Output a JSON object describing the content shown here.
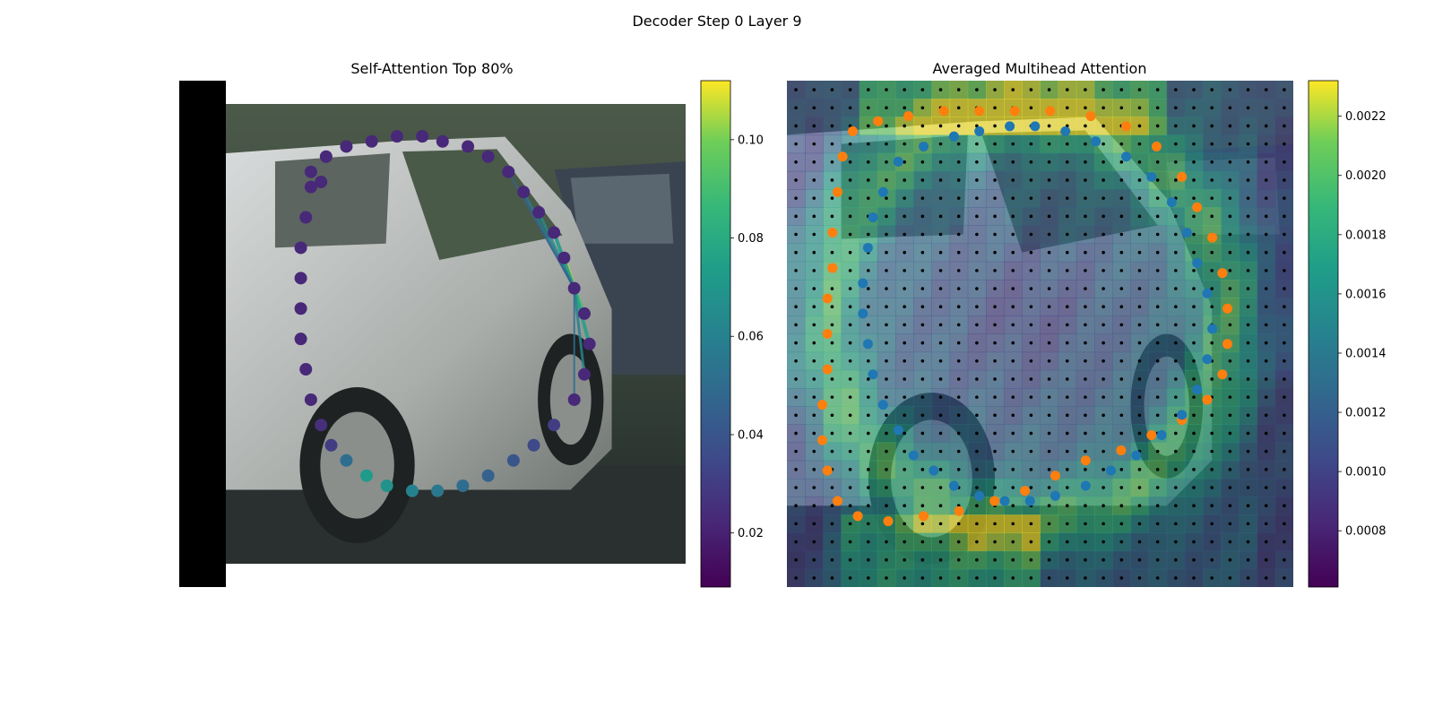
{
  "figure": {
    "suptitle": "Decoder Step 0 Layer 9"
  },
  "chart_data": [
    {
      "type": "scatter",
      "title": "Self-Attention Top 80%",
      "description_of_background": "photo of a silver car",
      "colormap": "viridis",
      "colorbar": {
        "ticks": [
          0.02,
          0.04,
          0.06,
          0.08,
          0.1
        ],
        "tick_labels": [
          "0.02",
          "0.04",
          "0.06",
          "0.08",
          "0.10"
        ],
        "range": [
          0.009,
          0.112
        ]
      },
      "query_point_index": 14,
      "points": [
        {
          "x": 0.26,
          "y": 0.18,
          "v": 0.022
        },
        {
          "x": 0.29,
          "y": 0.15,
          "v": 0.022
        },
        {
          "x": 0.33,
          "y": 0.13,
          "v": 0.022
        },
        {
          "x": 0.38,
          "y": 0.12,
          "v": 0.022
        },
        {
          "x": 0.43,
          "y": 0.11,
          "v": 0.022
        },
        {
          "x": 0.48,
          "y": 0.11,
          "v": 0.022
        },
        {
          "x": 0.52,
          "y": 0.12,
          "v": 0.022
        },
        {
          "x": 0.57,
          "y": 0.13,
          "v": 0.022
        },
        {
          "x": 0.61,
          "y": 0.15,
          "v": 0.022
        },
        {
          "x": 0.65,
          "y": 0.18,
          "v": 0.022
        },
        {
          "x": 0.68,
          "y": 0.22,
          "v": 0.022
        },
        {
          "x": 0.71,
          "y": 0.26,
          "v": 0.022
        },
        {
          "x": 0.74,
          "y": 0.3,
          "v": 0.022
        },
        {
          "x": 0.76,
          "y": 0.35,
          "v": 0.022
        },
        {
          "x": 0.78,
          "y": 0.41,
          "v": 0.022
        },
        {
          "x": 0.8,
          "y": 0.46,
          "v": 0.022
        },
        {
          "x": 0.81,
          "y": 0.52,
          "v": 0.022
        },
        {
          "x": 0.8,
          "y": 0.58,
          "v": 0.022
        },
        {
          "x": 0.78,
          "y": 0.63,
          "v": 0.022
        },
        {
          "x": 0.74,
          "y": 0.68,
          "v": 0.03
        },
        {
          "x": 0.7,
          "y": 0.72,
          "v": 0.035
        },
        {
          "x": 0.66,
          "y": 0.75,
          "v": 0.04
        },
        {
          "x": 0.61,
          "y": 0.78,
          "v": 0.045
        },
        {
          "x": 0.56,
          "y": 0.8,
          "v": 0.05
        },
        {
          "x": 0.51,
          "y": 0.81,
          "v": 0.055
        },
        {
          "x": 0.46,
          "y": 0.81,
          "v": 0.06
        },
        {
          "x": 0.41,
          "y": 0.8,
          "v": 0.068
        },
        {
          "x": 0.37,
          "y": 0.78,
          "v": 0.072
        },
        {
          "x": 0.33,
          "y": 0.75,
          "v": 0.05
        },
        {
          "x": 0.3,
          "y": 0.72,
          "v": 0.03
        },
        {
          "x": 0.28,
          "y": 0.68,
          "v": 0.025
        },
        {
          "x": 0.26,
          "y": 0.63,
          "v": 0.022
        },
        {
          "x": 0.25,
          "y": 0.57,
          "v": 0.022
        },
        {
          "x": 0.24,
          "y": 0.51,
          "v": 0.022
        },
        {
          "x": 0.24,
          "y": 0.45,
          "v": 0.022
        },
        {
          "x": 0.24,
          "y": 0.39,
          "v": 0.022
        },
        {
          "x": 0.24,
          "y": 0.33,
          "v": 0.022
        },
        {
          "x": 0.25,
          "y": 0.27,
          "v": 0.022
        },
        {
          "x": 0.26,
          "y": 0.21,
          "v": 0.022
        },
        {
          "x": 0.28,
          "y": 0.2,
          "v": 0.022
        }
      ],
      "attention_lines": [
        {
          "to": 13,
          "v": 0.105,
          "w": 5
        },
        {
          "to": 15,
          "v": 0.09,
          "w": 4
        },
        {
          "to": 16,
          "v": 0.075,
          "w": 4
        },
        {
          "to": 12,
          "v": 0.07,
          "w": 4
        },
        {
          "to": 11,
          "v": 0.065,
          "w": 3
        },
        {
          "to": 10,
          "v": 0.055,
          "w": 3
        },
        {
          "to": 17,
          "v": 0.06,
          "w": 3
        },
        {
          "to": 18,
          "v": 0.05,
          "w": 2
        },
        {
          "to": 9,
          "v": 0.045,
          "w": 2
        }
      ]
    },
    {
      "type": "heatmap",
      "title": "Averaged Multihead Attention",
      "description_of_background": "photo of a silver car overlaid with an attention heatmap",
      "colormap": "viridis",
      "colorbar": {
        "ticks": [
          0.0008,
          0.001,
          0.0012,
          0.0014,
          0.0016,
          0.0018,
          0.002,
          0.0022
        ],
        "tick_labels": [
          "0.0008",
          "0.0010",
          "0.0012",
          "0.0014",
          "0.0016",
          "0.0018",
          "0.0020",
          "0.0022"
        ],
        "range": [
          0.00061,
          0.00232
        ]
      },
      "grid": {
        "rows": 28,
        "cols": 28
      },
      "series": [
        {
          "color": "#ff7f0e",
          "points": [
            {
              "x": 0.13,
              "y": 0.1
            },
            {
              "x": 0.18,
              "y": 0.08
            },
            {
              "x": 0.24,
              "y": 0.07
            },
            {
              "x": 0.31,
              "y": 0.06
            },
            {
              "x": 0.38,
              "y": 0.06
            },
            {
              "x": 0.45,
              "y": 0.06
            },
            {
              "x": 0.52,
              "y": 0.06
            },
            {
              "x": 0.6,
              "y": 0.07
            },
            {
              "x": 0.67,
              "y": 0.09
            },
            {
              "x": 0.73,
              "y": 0.13
            },
            {
              "x": 0.78,
              "y": 0.19
            },
            {
              "x": 0.81,
              "y": 0.25
            },
            {
              "x": 0.84,
              "y": 0.31
            },
            {
              "x": 0.86,
              "y": 0.38
            },
            {
              "x": 0.87,
              "y": 0.45
            },
            {
              "x": 0.87,
              "y": 0.52
            },
            {
              "x": 0.86,
              "y": 0.58
            },
            {
              "x": 0.83,
              "y": 0.63
            },
            {
              "x": 0.78,
              "y": 0.67
            },
            {
              "x": 0.72,
              "y": 0.7
            },
            {
              "x": 0.66,
              "y": 0.73
            },
            {
              "x": 0.59,
              "y": 0.75
            },
            {
              "x": 0.53,
              "y": 0.78
            },
            {
              "x": 0.47,
              "y": 0.81
            },
            {
              "x": 0.41,
              "y": 0.83
            },
            {
              "x": 0.34,
              "y": 0.85
            },
            {
              "x": 0.27,
              "y": 0.86
            },
            {
              "x": 0.2,
              "y": 0.87
            },
            {
              "x": 0.14,
              "y": 0.86
            },
            {
              "x": 0.1,
              "y": 0.83
            },
            {
              "x": 0.08,
              "y": 0.77
            },
            {
              "x": 0.07,
              "y": 0.71
            },
            {
              "x": 0.07,
              "y": 0.64
            },
            {
              "x": 0.08,
              "y": 0.57
            },
            {
              "x": 0.08,
              "y": 0.5
            },
            {
              "x": 0.08,
              "y": 0.43
            },
            {
              "x": 0.09,
              "y": 0.37
            },
            {
              "x": 0.09,
              "y": 0.3
            },
            {
              "x": 0.1,
              "y": 0.22
            },
            {
              "x": 0.11,
              "y": 0.15
            }
          ]
        },
        {
          "color": "#1f77b4",
          "points": [
            {
              "x": 0.22,
              "y": 0.16
            },
            {
              "x": 0.27,
              "y": 0.13
            },
            {
              "x": 0.33,
              "y": 0.11
            },
            {
              "x": 0.38,
              "y": 0.1
            },
            {
              "x": 0.44,
              "y": 0.09
            },
            {
              "x": 0.49,
              "y": 0.09
            },
            {
              "x": 0.55,
              "y": 0.1
            },
            {
              "x": 0.61,
              "y": 0.12
            },
            {
              "x": 0.67,
              "y": 0.15
            },
            {
              "x": 0.72,
              "y": 0.19
            },
            {
              "x": 0.76,
              "y": 0.24
            },
            {
              "x": 0.79,
              "y": 0.3
            },
            {
              "x": 0.81,
              "y": 0.36
            },
            {
              "x": 0.83,
              "y": 0.42
            },
            {
              "x": 0.84,
              "y": 0.49
            },
            {
              "x": 0.83,
              "y": 0.55
            },
            {
              "x": 0.81,
              "y": 0.61
            },
            {
              "x": 0.78,
              "y": 0.66
            },
            {
              "x": 0.74,
              "y": 0.7
            },
            {
              "x": 0.69,
              "y": 0.74
            },
            {
              "x": 0.64,
              "y": 0.77
            },
            {
              "x": 0.59,
              "y": 0.8
            },
            {
              "x": 0.53,
              "y": 0.82
            },
            {
              "x": 0.48,
              "y": 0.83
            },
            {
              "x": 0.43,
              "y": 0.83
            },
            {
              "x": 0.38,
              "y": 0.82
            },
            {
              "x": 0.33,
              "y": 0.8
            },
            {
              "x": 0.29,
              "y": 0.77
            },
            {
              "x": 0.25,
              "y": 0.74
            },
            {
              "x": 0.22,
              "y": 0.69
            },
            {
              "x": 0.19,
              "y": 0.64
            },
            {
              "x": 0.17,
              "y": 0.58
            },
            {
              "x": 0.16,
              "y": 0.52
            },
            {
              "x": 0.15,
              "y": 0.46
            },
            {
              "x": 0.15,
              "y": 0.4
            },
            {
              "x": 0.16,
              "y": 0.33
            },
            {
              "x": 0.17,
              "y": 0.27
            },
            {
              "x": 0.19,
              "y": 0.22
            }
          ]
        }
      ]
    }
  ]
}
